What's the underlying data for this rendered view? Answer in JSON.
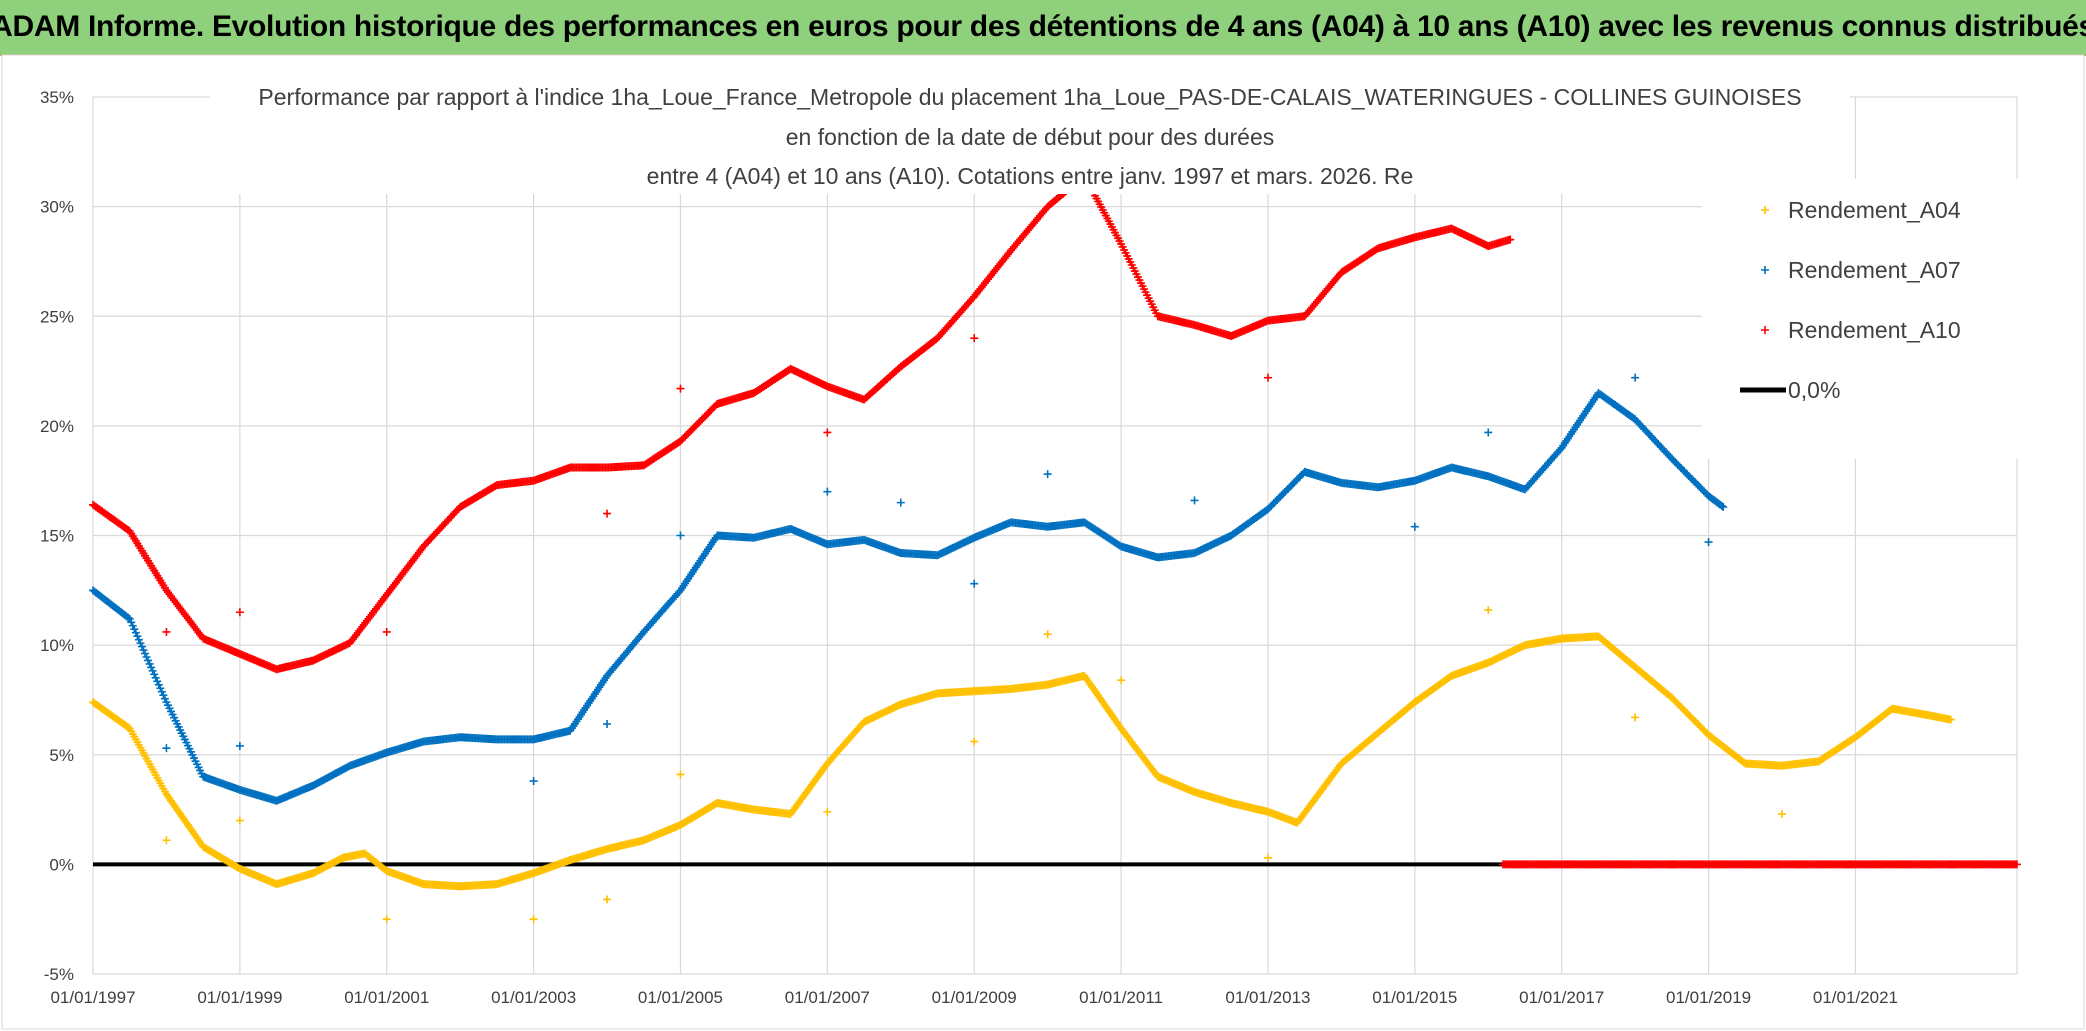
{
  "header": {
    "title": "ADAM Informe. Evolution historique des performances en euros pour des détentions de 4 ans (A04) à 10 ans (A10) avec les revenus connus distribués"
  },
  "chart_data": {
    "type": "scatter",
    "title_lines": [
      "Performance par rapport à l'indice 1ha_Loue_France_Metropole  du placement 1ha_Loue_PAS-DE-CALAIS_WATERINGUES - COLLINES GUINOISES",
      "en fonction de la date de début pour des durées",
      "entre 4 (A04) et 10 ans (A10). Cotations entre janv. 1997 et mars. 2026. Re"
    ],
    "x_tick_labels": [
      "01/01/1997",
      "01/01/1999",
      "01/01/2001",
      "01/01/2003",
      "01/01/2005",
      "01/01/2007",
      "01/01/2009",
      "01/01/2011",
      "01/01/2013",
      "01/01/2015",
      "01/01/2017",
      "01/01/2019",
      "01/01/2021"
    ],
    "xlim": [
      1997.0,
      2023.2
    ],
    "y_tick_labels": [
      "-5%",
      "0%",
      "5%",
      "10%",
      "15%",
      "20%",
      "25%",
      "30%",
      "35%"
    ],
    "ylim": [
      -5,
      35
    ],
    "grid": true,
    "legend_position": "top-right",
    "series": [
      {
        "name": "Rendement_A04",
        "color": "#ffc000",
        "line": [
          [
            1997.0,
            7.4
          ],
          [
            1997.5,
            6.2
          ],
          [
            1998.0,
            3.2
          ],
          [
            1998.5,
            0.8
          ],
          [
            1999.0,
            -0.2
          ],
          [
            1999.5,
            -0.9
          ],
          [
            2000.0,
            -0.4
          ],
          [
            2000.4,
            0.3
          ],
          [
            2000.7,
            0.5
          ],
          [
            2001.0,
            -0.3
          ],
          [
            2001.5,
            -0.9
          ],
          [
            2002.0,
            -1.0
          ],
          [
            2002.5,
            -0.9
          ],
          [
            2003.0,
            -0.4
          ],
          [
            2003.5,
            0.2
          ],
          [
            2004.0,
            0.7
          ],
          [
            2004.5,
            1.1
          ],
          [
            2005.0,
            1.8
          ],
          [
            2005.5,
            2.8
          ],
          [
            2006.0,
            2.5
          ],
          [
            2006.5,
            2.3
          ],
          [
            2007.0,
            4.6
          ],
          [
            2007.5,
            6.5
          ],
          [
            2008.0,
            7.3
          ],
          [
            2008.5,
            7.8
          ],
          [
            2009.0,
            7.9
          ],
          [
            2009.5,
            8.0
          ],
          [
            2010.0,
            8.2
          ],
          [
            2010.5,
            8.6
          ],
          [
            2011.0,
            6.2
          ],
          [
            2011.5,
            4.0
          ],
          [
            2012.0,
            3.3
          ],
          [
            2012.5,
            2.8
          ],
          [
            2013.0,
            2.4
          ],
          [
            2013.4,
            1.9
          ],
          [
            2014.0,
            4.6
          ],
          [
            2014.5,
            6.0
          ],
          [
            2015.0,
            7.4
          ],
          [
            2015.5,
            8.6
          ],
          [
            2016.0,
            9.2
          ],
          [
            2016.5,
            10.0
          ],
          [
            2017.0,
            10.3
          ],
          [
            2017.5,
            10.4
          ],
          [
            2018.0,
            9.0
          ],
          [
            2018.5,
            7.6
          ],
          [
            2019.0,
            5.9
          ],
          [
            2019.5,
            4.6
          ],
          [
            2020.0,
            4.5
          ],
          [
            2020.5,
            4.7
          ],
          [
            2021.0,
            5.8
          ],
          [
            2021.5,
            7.1
          ],
          [
            2022.0,
            6.8
          ],
          [
            2022.3,
            6.6
          ]
        ],
        "outliers": [
          [
            1998.0,
            1.1
          ],
          [
            1999.0,
            2.0
          ],
          [
            2001.0,
            -2.5
          ],
          [
            2003.0,
            -2.5
          ],
          [
            2004.0,
            -1.6
          ],
          [
            2005.0,
            4.1
          ],
          [
            2007.0,
            2.4
          ],
          [
            2009.0,
            5.6
          ],
          [
            2010.0,
            10.5
          ],
          [
            2011.0,
            8.4
          ],
          [
            2013.0,
            0.3
          ],
          [
            2016.0,
            11.6
          ],
          [
            2018.0,
            6.7
          ],
          [
            2020.0,
            2.3
          ]
        ]
      },
      {
        "name": "Rendement_A07",
        "color": "#0070c0",
        "line": [
          [
            1997.0,
            12.5
          ],
          [
            1997.5,
            11.2
          ],
          [
            1998.0,
            7.4
          ],
          [
            1998.5,
            4.0
          ],
          [
            1999.0,
            3.4
          ],
          [
            1999.5,
            2.9
          ],
          [
            2000.0,
            3.6
          ],
          [
            2000.5,
            4.5
          ],
          [
            2001.0,
            5.1
          ],
          [
            2001.5,
            5.6
          ],
          [
            2002.0,
            5.8
          ],
          [
            2002.5,
            5.7
          ],
          [
            2003.0,
            5.7
          ],
          [
            2003.5,
            6.1
          ],
          [
            2004.0,
            8.6
          ],
          [
            2004.5,
            10.6
          ],
          [
            2005.0,
            12.5
          ],
          [
            2005.5,
            15.0
          ],
          [
            2006.0,
            14.9
          ],
          [
            2006.5,
            15.3
          ],
          [
            2007.0,
            14.6
          ],
          [
            2007.5,
            14.8
          ],
          [
            2008.0,
            14.2
          ],
          [
            2008.5,
            14.1
          ],
          [
            2009.0,
            14.9
          ],
          [
            2009.5,
            15.6
          ],
          [
            2010.0,
            15.4
          ],
          [
            2010.5,
            15.6
          ],
          [
            2011.0,
            14.5
          ],
          [
            2011.5,
            14.0
          ],
          [
            2012.0,
            14.2
          ],
          [
            2012.5,
            15.0
          ],
          [
            2013.0,
            16.2
          ],
          [
            2013.5,
            17.9
          ],
          [
            2014.0,
            17.4
          ],
          [
            2014.5,
            17.2
          ],
          [
            2015.0,
            17.5
          ],
          [
            2015.5,
            18.1
          ],
          [
            2016.0,
            17.7
          ],
          [
            2016.5,
            17.1
          ],
          [
            2017.0,
            19.0
          ],
          [
            2017.5,
            21.5
          ],
          [
            2018.0,
            20.3
          ],
          [
            2018.5,
            18.5
          ],
          [
            2019.0,
            16.8
          ],
          [
            2019.2,
            16.3
          ]
        ],
        "outliers": [
          [
            1998.0,
            5.3
          ],
          [
            1999.0,
            5.4
          ],
          [
            2003.0,
            3.8
          ],
          [
            2004.0,
            6.4
          ],
          [
            2005.0,
            15.0
          ],
          [
            2007.0,
            17.0
          ],
          [
            2008.0,
            16.5
          ],
          [
            2009.0,
            12.8
          ],
          [
            2010.0,
            17.8
          ],
          [
            2012.0,
            16.6
          ],
          [
            2015.0,
            15.4
          ],
          [
            2016.0,
            19.7
          ],
          [
            2018.0,
            22.2
          ],
          [
            2019.0,
            14.7
          ]
        ]
      },
      {
        "name": "Rendement_A10",
        "color": "#ff0000",
        "line": [
          [
            1997.0,
            16.4
          ],
          [
            1997.5,
            15.2
          ],
          [
            1998.0,
            12.5
          ],
          [
            1998.5,
            10.3
          ],
          [
            1999.0,
            9.6
          ],
          [
            1999.5,
            8.9
          ],
          [
            2000.0,
            9.3
          ],
          [
            2000.5,
            10.1
          ],
          [
            2001.0,
            12.3
          ],
          [
            2001.5,
            14.5
          ],
          [
            2002.0,
            16.3
          ],
          [
            2002.5,
            17.3
          ],
          [
            2003.0,
            17.5
          ],
          [
            2003.5,
            18.1
          ],
          [
            2004.0,
            18.1
          ],
          [
            2004.5,
            18.2
          ],
          [
            2005.0,
            19.3
          ],
          [
            2005.5,
            21.0
          ],
          [
            2006.0,
            21.5
          ],
          [
            2006.5,
            22.6
          ],
          [
            2007.0,
            21.8
          ],
          [
            2007.5,
            21.2
          ],
          [
            2008.0,
            22.7
          ],
          [
            2008.5,
            24.0
          ],
          [
            2009.0,
            25.9
          ],
          [
            2009.5,
            28.0
          ],
          [
            2010.0,
            30.0
          ],
          [
            2010.5,
            31.4
          ],
          [
            2011.0,
            28.3
          ],
          [
            2011.5,
            25.0
          ],
          [
            2012.0,
            24.6
          ],
          [
            2012.5,
            24.1
          ],
          [
            2013.0,
            24.8
          ],
          [
            2013.5,
            25.0
          ],
          [
            2014.0,
            27.0
          ],
          [
            2014.5,
            28.1
          ],
          [
            2015.0,
            28.6
          ],
          [
            2015.5,
            29.0
          ],
          [
            2016.0,
            28.2
          ],
          [
            2016.3,
            28.5
          ]
        ],
        "outliers": [
          [
            1998.0,
            10.6
          ],
          [
            1999.0,
            11.5
          ],
          [
            2001.0,
            10.6
          ],
          [
            2004.0,
            16.0
          ],
          [
            2005.0,
            21.7
          ],
          [
            2007.0,
            19.7
          ],
          [
            2009.0,
            24.0
          ],
          [
            2013.0,
            22.2
          ]
        ],
        "zero_segment": [
          2016.2,
          2023.2
        ]
      }
    ],
    "reference_line": {
      "name": "0,0%",
      "value": 0,
      "color": "#000000"
    }
  }
}
